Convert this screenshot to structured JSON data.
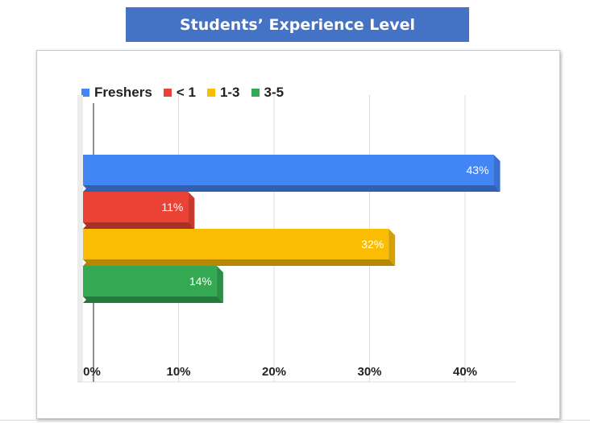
{
  "title": "Students’ Experience Level",
  "chart_data": {
    "type": "bar",
    "orientation": "horizontal",
    "style": "3d",
    "title": "Students’ Experience Level",
    "categories": [
      "Freshers",
      "< 1",
      "1-3",
      "3-5"
    ],
    "values": [
      43,
      11,
      32,
      14
    ],
    "data_labels": [
      "43%",
      "11%",
      "32%",
      "14%"
    ],
    "colors": [
      "#4285f4",
      "#ea4335",
      "#fbbc04",
      "#34a853"
    ],
    "xlim": [
      0,
      45
    ],
    "x_ticks": [
      0,
      10,
      20,
      30,
      40
    ],
    "x_tick_labels": [
      "0%",
      "10%",
      "20%",
      "30%",
      "40%"
    ],
    "legend": "top-left",
    "grid": true
  }
}
